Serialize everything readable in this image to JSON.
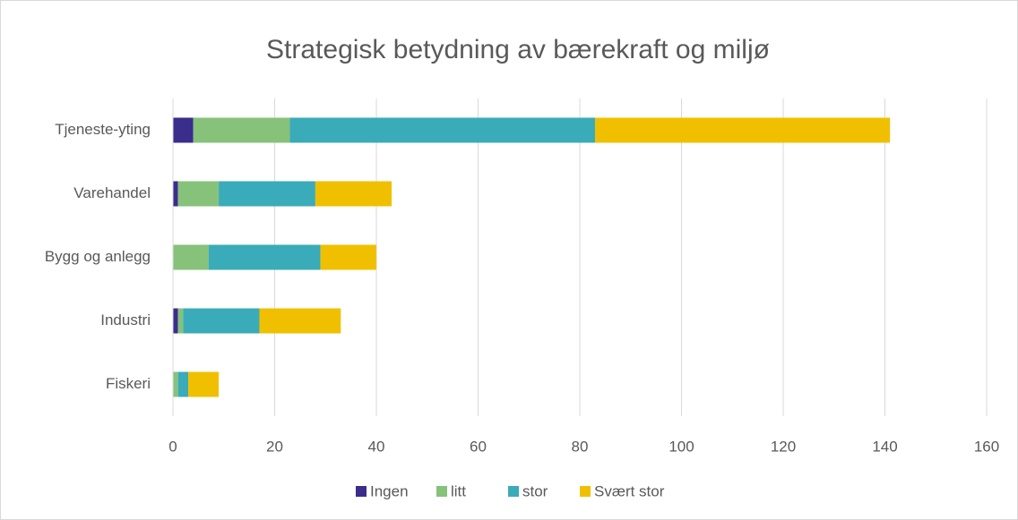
{
  "chart_data": {
    "type": "stacked-barh",
    "title": "Strategisk betydning av bærekraft og miljø",
    "categories": [
      "Tjeneste-yting",
      "Varehandel",
      "Bygg og anlegg",
      "Industri",
      "Fiskeri"
    ],
    "series": [
      {
        "name": "Ingen",
        "color": "#3a2d8c",
        "values": [
          4,
          1,
          0,
          1,
          0
        ]
      },
      {
        "name": "litt",
        "color": "#86c27a",
        "values": [
          19,
          8,
          7,
          1,
          1
        ]
      },
      {
        "name": "stor",
        "color": "#3aabb8",
        "values": [
          60,
          19,
          22,
          15,
          2
        ]
      },
      {
        "name": "Svært stor",
        "color": "#f0c000",
        "values": [
          58,
          15,
          11,
          16,
          6
        ]
      }
    ],
    "xlim": [
      0,
      160
    ],
    "xticks": [
      0,
      20,
      40,
      60,
      80,
      100,
      120,
      140,
      160
    ],
    "grid": true,
    "legend": "bottom"
  }
}
